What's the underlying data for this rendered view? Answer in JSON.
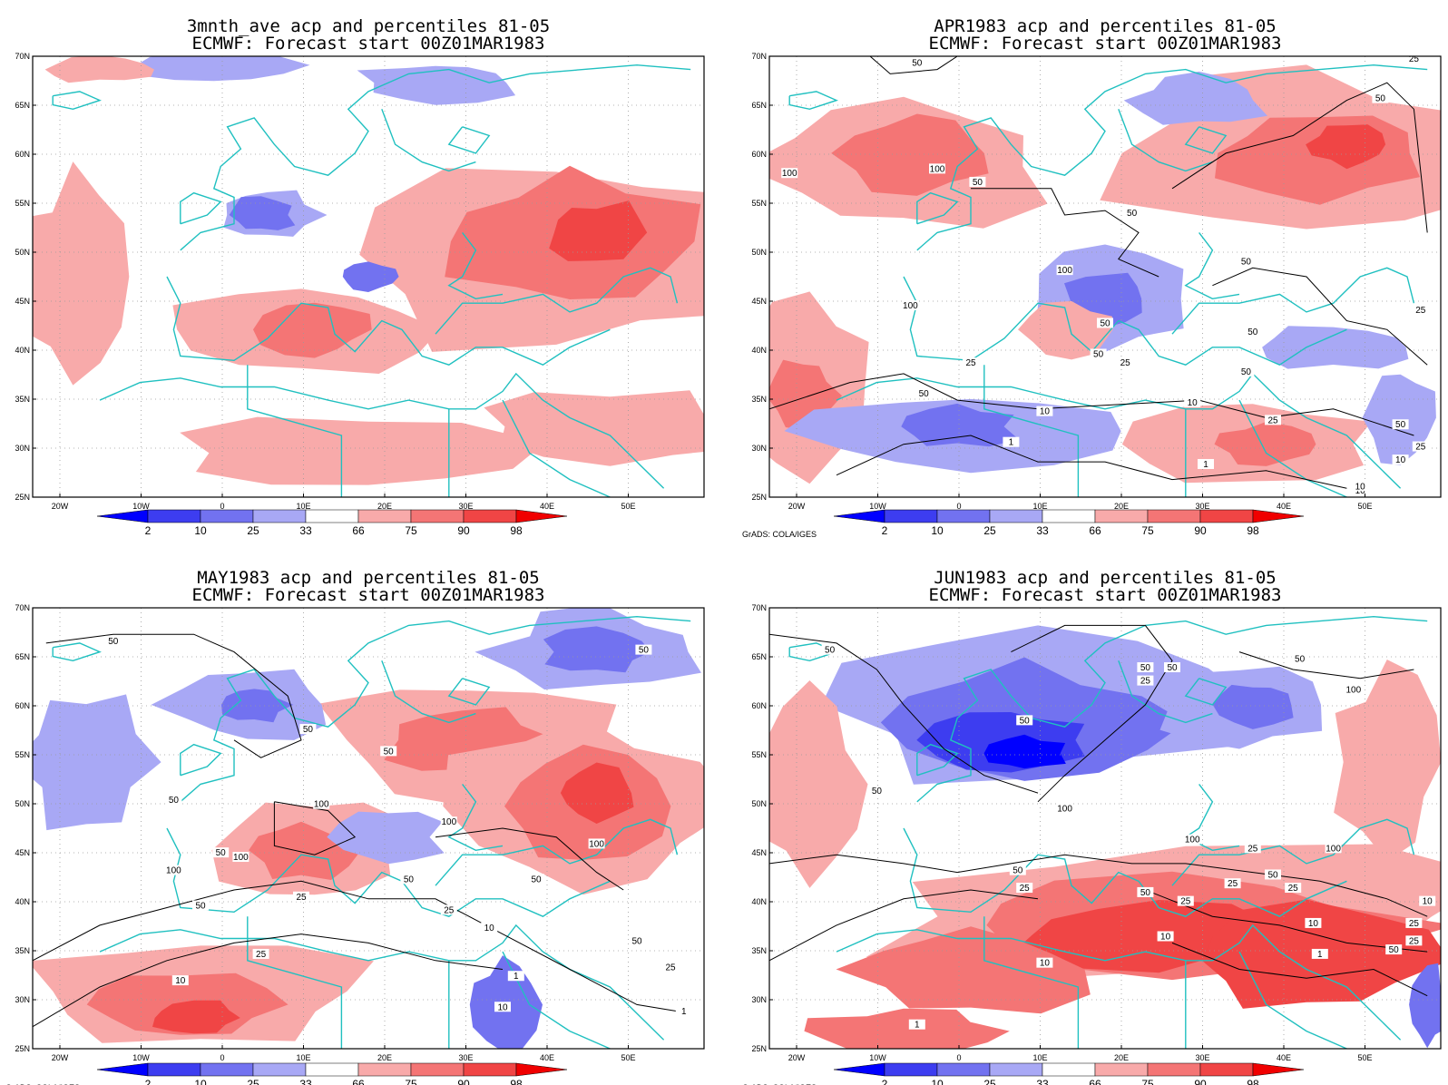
{
  "credit_text": "GrADS: COLA/IGES",
  "lon_ticks": [
    "20W",
    "10W",
    "0",
    "10E",
    "20E",
    "30E",
    "40E",
    "50E"
  ],
  "lat_ticks": [
    "25N",
    "30N",
    "35N",
    "40N",
    "45N",
    "50N",
    "55N",
    "60N",
    "65N",
    "70N"
  ],
  "colorbar": {
    "labels": [
      "2",
      "10",
      "25",
      "33",
      "66",
      "75",
      "90",
      "98"
    ],
    "colors": [
      "#0000ff",
      "#3d3df0",
      "#7272f0",
      "#a8a8f5",
      "#ffffff",
      "#f8aaaa",
      "#f47575",
      "#f04545",
      "#f00000"
    ]
  },
  "colors": {
    "coast": "#20c0c0",
    "contour": "#000000",
    "grid": "#9a9a9a"
  },
  "panels": [
    {
      "id": "3mnth",
      "title1": "3mnth_ave acp and percentiles 81-05",
      "title2": "ECMWF: Forecast start 00Z01MAR1983",
      "show_credit": false,
      "contour_labels": []
    },
    {
      "id": "apr",
      "title1": "APR1983 acp and percentiles 81-05",
      "title2": "ECMWF: Forecast start 00Z01MAR1983",
      "show_credit": true,
      "contour_labels": [
        "50",
        "25",
        "50",
        "100",
        "100",
        "50",
        "50",
        "100",
        "50",
        "100",
        "50",
        "50",
        "50",
        "25",
        "50",
        "25",
        "50",
        "25",
        "10",
        "10",
        "25",
        "50",
        "1",
        "1",
        "10",
        "25",
        "10",
        "10"
      ]
    },
    {
      "id": "may",
      "title1": "MAY1983 acp and percentiles 81-05",
      "title2": "ECMWF: Forecast start 00Z01MAR1983",
      "show_credit": true,
      "contour_labels": [
        "50",
        "50",
        "50",
        "50",
        "50",
        "100",
        "100",
        "100",
        "50",
        "100",
        "100",
        "25",
        "25",
        "50",
        "50",
        "50",
        "25",
        "10",
        "1",
        "10",
        "50",
        "25",
        "10",
        "1"
      ]
    },
    {
      "id": "jun",
      "title1": "JUN1983 acp and percentiles 81-05",
      "title2": "ECMWF: Forecast start 00Z01MAR1983",
      "show_credit": true,
      "contour_labels": [
        "50",
        "50",
        "50",
        "25",
        "50",
        "50",
        "100",
        "100",
        "100",
        "100",
        "50",
        "25",
        "50",
        "25",
        "50",
        "25",
        "25",
        "50",
        "25",
        "10",
        "10",
        "10",
        "25",
        "10",
        "50",
        "25",
        "1",
        "1"
      ]
    }
  ]
}
